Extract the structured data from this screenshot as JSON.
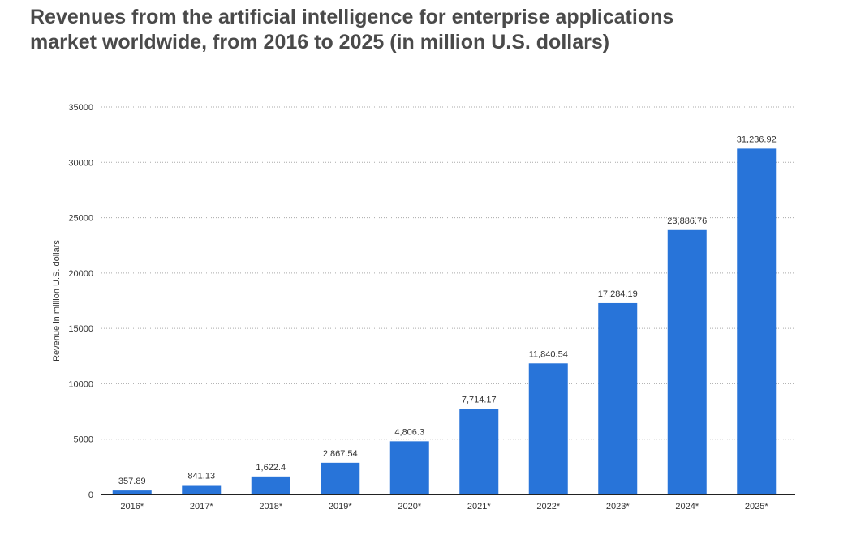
{
  "chart_data": {
    "type": "bar",
    "title": "Revenues from the artificial intelligence for enterprise applications market worldwide, from 2016 to 2025 (in million U.S. dollars)",
    "title_lines": [
      "Revenues from the artificial intelligence for enterprise applications",
      "market worldwide, from 2016 to 2025 (in million U.S. dollars)"
    ],
    "xlabel": "",
    "ylabel": "Revenue in million U.S. dollars",
    "categories": [
      "2016*",
      "2017*",
      "2018*",
      "2019*",
      "2020*",
      "2021*",
      "2022*",
      "2023*",
      "2024*",
      "2025*"
    ],
    "values": [
      357.89,
      841.13,
      1622.4,
      2867.54,
      4806.3,
      7714.17,
      11840.54,
      17284.19,
      23886.76,
      31236.92
    ],
    "data_labels": [
      "357.89",
      "841.13",
      "1,622.4",
      "2,867.54",
      "4,806.3",
      "7,714.17",
      "11,840.54",
      "17,284.19",
      "23,886.76",
      "31,236.92"
    ],
    "ylim": [
      0,
      35000
    ],
    "yticks": [
      0,
      5000,
      10000,
      15000,
      20000,
      25000,
      30000,
      35000
    ],
    "grid": true,
    "bar_color": "#2874d9"
  }
}
